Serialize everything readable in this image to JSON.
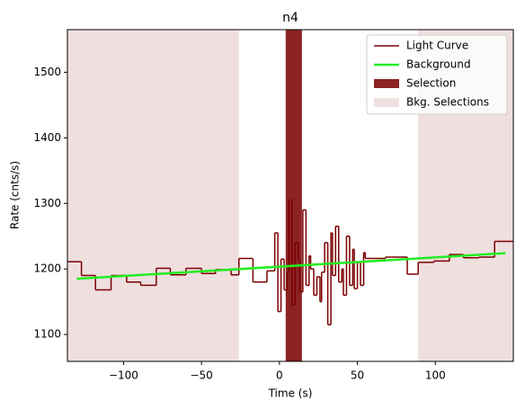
{
  "chart_data": {
    "type": "lightcurve",
    "title": "n4",
    "xlabel": "Time (s)",
    "ylabel": "Rate (cnts/s)",
    "xlim": [
      -136,
      150
    ],
    "ylim": [
      1059,
      1565
    ],
    "xticks": [
      {
        "value": -100,
        "label": "−100"
      },
      {
        "value": -50,
        "label": "−50"
      },
      0,
      50,
      100
    ],
    "yticks": [
      1100,
      1200,
      1300,
      1400,
      1500
    ],
    "light_curve": {
      "name": "Light Curve",
      "color": "#7b0000",
      "bins": [
        -136,
        -127,
        -118,
        -108,
        -98,
        -89,
        -79,
        -70,
        -60,
        -50,
        -41,
        -31,
        -26,
        -17,
        -8,
        -3,
        -1,
        1,
        3,
        5,
        6,
        8,
        10,
        12,
        13,
        15,
        17,
        19,
        20,
        22,
        24,
        26,
        27,
        29,
        31,
        33,
        34,
        36,
        38,
        40,
        41,
        43,
        45,
        47,
        48,
        50,
        52,
        54,
        55,
        68,
        82,
        89,
        99,
        109,
        118,
        128,
        138,
        150
      ],
      "values": [
        1211,
        1190,
        1168,
        1190,
        1180,
        1175,
        1201,
        1191,
        1201,
        1193,
        1199,
        1191,
        1216,
        1180,
        1197,
        1255,
        1135,
        1215,
        1168,
        1195,
        1305,
        1145,
        1240,
        1215,
        1165,
        1290,
        1175,
        1220,
        1200,
        1160,
        1188,
        1150,
        1195,
        1240,
        1115,
        1255,
        1190,
        1265,
        1180,
        1200,
        1160,
        1250,
        1175,
        1230,
        1170,
        1210,
        1175,
        1225,
        1216,
        1218,
        1192,
        1210,
        1212,
        1222,
        1217,
        1218,
        1242
      ]
    },
    "background": {
      "name": "Background",
      "color": "#22ee22",
      "x": [
        -130,
        145
      ],
      "values": [
        1185,
        1224
      ]
    },
    "selection": {
      "name": "Selection",
      "color": "#8b2323",
      "ranges": [
        [
          4,
          14.4
        ]
      ]
    },
    "bkg_selections": {
      "name": "Bkg. Selections",
      "color": "#efdfdf",
      "ranges": [
        [
          -136,
          -26
        ],
        [
          89,
          150
        ]
      ]
    },
    "legend": "upper right"
  }
}
